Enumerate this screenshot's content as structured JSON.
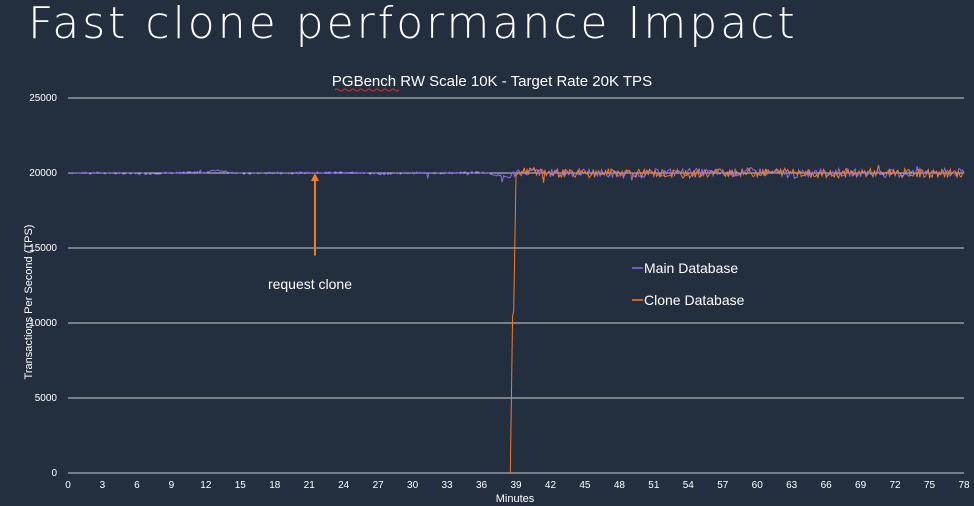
{
  "slide": {
    "title": "Fast clone performance Impact"
  },
  "colors": {
    "background": "#232f3e",
    "main_series": "#8b6cf0",
    "clone_series": "#f07b2c",
    "grid": "#c8ccd0",
    "text": "#ffffff"
  },
  "chart_data": {
    "type": "line",
    "title": "PGBench RW Scale 10K - Target Rate 20K TPS",
    "xlabel": "Minutes",
    "ylabel": "Transactions Per Second (TPS)",
    "xlim": [
      0,
      78
    ],
    "ylim": [
      0,
      25000
    ],
    "x_ticks": [
      0,
      3,
      6,
      9,
      12,
      15,
      18,
      21,
      24,
      27,
      30,
      33,
      36,
      39,
      42,
      45,
      48,
      51,
      54,
      57,
      60,
      63,
      66,
      69,
      72,
      75,
      78
    ],
    "y_ticks": [
      0,
      5000,
      10000,
      15000,
      20000,
      25000
    ],
    "grid": true,
    "legend_position": "right",
    "series": [
      {
        "name": "Main Database",
        "color": "#8b6cf0",
        "x": [
          0,
          3,
          6,
          9,
          12,
          13,
          15,
          18,
          21,
          24,
          27,
          30,
          33,
          36,
          38.5,
          39,
          42,
          45,
          48,
          51,
          54,
          57,
          60,
          63,
          66,
          69,
          72,
          75,
          78
        ],
        "y": [
          20000,
          20000,
          19950,
          20000,
          20050,
          20200,
          19950,
          20000,
          20000,
          20050,
          19950,
          20000,
          20000,
          20050,
          19700,
          20100,
          20000,
          20050,
          19900,
          20000,
          20050,
          20000,
          20100,
          19900,
          20050,
          20000,
          19950,
          20050,
          20000
        ]
      },
      {
        "name": "Clone Database",
        "color": "#f07b2c",
        "x": [
          38.5,
          38.7,
          38.8,
          39,
          39.5,
          42,
          45,
          48,
          51,
          54,
          57,
          60,
          63,
          66,
          69,
          72,
          75,
          78
        ],
        "y": [
          0,
          10500,
          10800,
          19800,
          20200,
          20000,
          19950,
          20050,
          20000,
          19900,
          20050,
          20000,
          20100,
          19900,
          20000,
          20050,
          19950,
          20000
        ]
      }
    ],
    "annotations": [
      {
        "text": "request clone",
        "x": 21.5,
        "y_from": 14500,
        "y_to": 20000
      }
    ]
  }
}
